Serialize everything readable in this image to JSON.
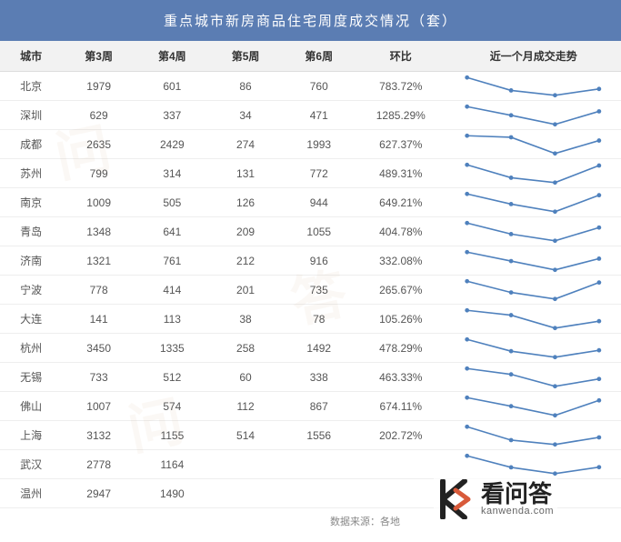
{
  "title": "重点城市新房商品住宅周度成交情况（套）",
  "columns": [
    "城市",
    "第3周",
    "第4周",
    "第5周",
    "第6周",
    "环比",
    "近一个月成交走势"
  ],
  "colors": {
    "header_bg": "#5b7db3",
    "header_text": "#ffffff",
    "th_bg": "#f2f2f2",
    "border": "#dddddd",
    "row_border": "#eeeeee",
    "text": "#555555",
    "spark_color": "#4f81bd"
  },
  "rows": [
    {
      "city": "北京",
      "w3": "1979",
      "w4": "601",
      "w5": "86",
      "w6": "760",
      "pct": "783.72%",
      "spark": [
        1979,
        601,
        86,
        760
      ]
    },
    {
      "city": "深圳",
      "w3": "629",
      "w4": "337",
      "w5": "34",
      "w6": "471",
      "pct": "1285.29%",
      "spark": [
        629,
        337,
        34,
        471
      ]
    },
    {
      "city": "成都",
      "w3": "2635",
      "w4": "2429",
      "w5": "274",
      "w6": "1993",
      "pct": "627.37%",
      "spark": [
        2635,
        2429,
        274,
        1993
      ]
    },
    {
      "city": "苏州",
      "w3": "799",
      "w4": "314",
      "w5": "131",
      "w6": "772",
      "pct": "489.31%",
      "spark": [
        799,
        314,
        131,
        772
      ]
    },
    {
      "city": "南京",
      "w3": "1009",
      "w4": "505",
      "w5": "126",
      "w6": "944",
      "pct": "649.21%",
      "spark": [
        1009,
        505,
        126,
        944
      ]
    },
    {
      "city": "青岛",
      "w3": "1348",
      "w4": "641",
      "w5": "209",
      "w6": "1055",
      "pct": "404.78%",
      "spark": [
        1348,
        641,
        209,
        1055
      ]
    },
    {
      "city": "济南",
      "w3": "1321",
      "w4": "761",
      "w5": "212",
      "w6": "916",
      "pct": "332.08%",
      "spark": [
        1321,
        761,
        212,
        916
      ]
    },
    {
      "city": "宁波",
      "w3": "778",
      "w4": "414",
      "w5": "201",
      "w6": "735",
      "pct": "265.67%",
      "spark": [
        778,
        414,
        201,
        735
      ]
    },
    {
      "city": "大连",
      "w3": "141",
      "w4": "113",
      "w5": "38",
      "w6": "78",
      "pct": "105.26%",
      "spark": [
        141,
        113,
        38,
        78
      ]
    },
    {
      "city": "杭州",
      "w3": "3450",
      "w4": "1335",
      "w5": "258",
      "w6": "1492",
      "pct": "478.29%",
      "spark": [
        3450,
        1335,
        258,
        1492
      ]
    },
    {
      "city": "无锡",
      "w3": "733",
      "w4": "512",
      "w5": "60",
      "w6": "338",
      "pct": "463.33%",
      "spark": [
        733,
        512,
        60,
        338
      ]
    },
    {
      "city": "佛山",
      "w3": "1007",
      "w4": "574",
      "w5": "112",
      "w6": "867",
      "pct": "674.11%",
      "spark": [
        1007,
        574,
        112,
        867
      ]
    },
    {
      "city": "上海",
      "w3": "3132",
      "w4": "1155",
      "w5": "514",
      "w6": "1556",
      "pct": "202.72%",
      "spark": [
        3132,
        1155,
        514,
        1556
      ]
    },
    {
      "city": "武汉",
      "w3": "2778",
      "w4": "1164",
      "w5": "",
      "w6": "",
      "pct": "",
      "spark": [
        2778,
        1164,
        300,
        1200
      ]
    },
    {
      "city": "温州",
      "w3": "2947",
      "w4": "1490",
      "w5": "",
      "w6": "",
      "pct": "",
      "spark": null
    }
  ],
  "footer": "数据来源：各地",
  "watermark": {
    "cn": "看问答",
    "url": "kanwenda.com"
  },
  "bg_watermarks": [
    "问",
    "答",
    "问"
  ]
}
